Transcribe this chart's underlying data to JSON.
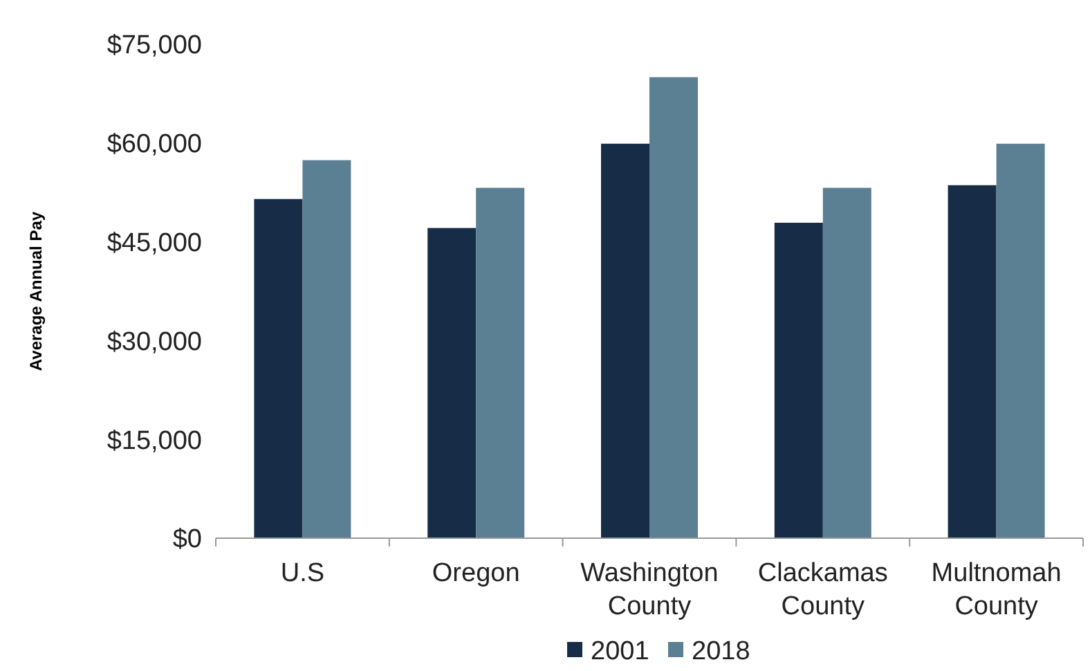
{
  "chart_data": {
    "type": "bar",
    "ylabel": "Average Annual Pay",
    "categories": [
      "U.S",
      "Oregon",
      "Washington County",
      "Clackamas County",
      "Multnomah County"
    ],
    "series": [
      {
        "name": "2001",
        "color": "#172d47",
        "values": [
          51500,
          47100,
          59900,
          47900,
          53600
        ]
      },
      {
        "name": "2018",
        "color": "#5b7f93",
        "values": [
          57400,
          53200,
          70000,
          53200,
          59900
        ]
      }
    ],
    "ylim": [
      0,
      75000
    ],
    "yticks": [
      {
        "value": 0,
        "label": "$0"
      },
      {
        "value": 15000,
        "label": "$15,000"
      },
      {
        "value": 30000,
        "label": "$30,000"
      },
      {
        "value": 45000,
        "label": "$45,000"
      },
      {
        "value": 60000,
        "label": "$60,000"
      },
      {
        "value": 75000,
        "label": "$75,000"
      }
    ],
    "grid": false,
    "legend": "bottom"
  }
}
